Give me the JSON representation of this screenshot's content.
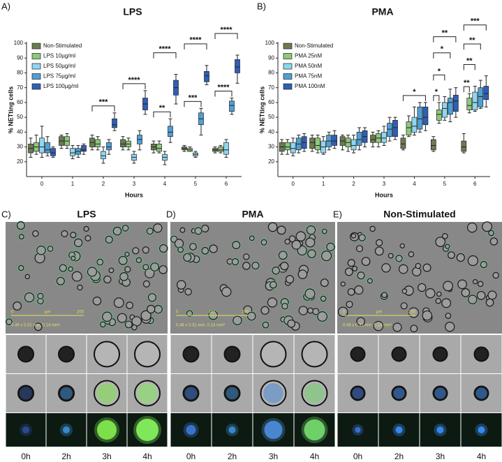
{
  "chart_data": [
    {
      "type": "box",
      "panel": "A)",
      "title": "LPS",
      "x_label": "Hours",
      "y_label": "% NETting cells",
      "categories": [
        "0",
        "1",
        "2",
        "3",
        "4",
        "5",
        "6"
      ],
      "ylim": [
        10,
        100
      ],
      "yticks": [
        20,
        30,
        40,
        50,
        60,
        70,
        80,
        90,
        100
      ],
      "legend": "top-left",
      "series": [
        {
          "name": "Non-Stimulated",
          "color": "#6b7c4f",
          "min": [
            23,
            29,
            28,
            28,
            26,
            27,
            26
          ],
          "q1": [
            26,
            31,
            30,
            30,
            28,
            28,
            27
          ],
          "median": [
            29,
            34,
            33,
            32,
            30,
            29,
            28
          ],
          "q3": [
            32,
            37,
            36,
            35,
            32,
            30,
            29
          ],
          "max": [
            36,
            38,
            38,
            37,
            34,
            31,
            30
          ]
        },
        {
          "name": "LPS 10µg/ml",
          "color": "#8cc97a",
          "min": [
            25,
            29,
            28,
            28,
            26,
            27,
            26
          ],
          "q1": [
            27,
            31,
            30,
            30,
            27,
            27,
            27
          ],
          "median": [
            30,
            34,
            32,
            32,
            29,
            28,
            28
          ],
          "q3": [
            33,
            37,
            35,
            34,
            32,
            29,
            30
          ],
          "max": [
            38,
            39,
            37,
            36,
            34,
            30,
            31
          ]
        },
        {
          "name": "LPS 50µg/ml",
          "color": "#8fd6f0",
          "min": [
            23,
            22,
            19,
            19,
            18,
            23,
            23
          ],
          "q1": [
            26,
            24,
            22,
            21,
            21,
            24,
            25
          ],
          "median": [
            30,
            26,
            24,
            23,
            23,
            25,
            28
          ],
          "q3": [
            36,
            29,
            27,
            25,
            25,
            26,
            33
          ],
          "max": [
            44,
            31,
            30,
            27,
            27,
            27,
            35
          ]
        },
        {
          "name": "LPS 75µg/ml",
          "color": "#4fa0d6",
          "min": [
            24,
            23,
            25,
            28,
            33,
            38,
            52
          ],
          "q1": [
            26,
            25,
            28,
            32,
            37,
            45,
            54
          ],
          "median": [
            28,
            27,
            30,
            35,
            40,
            49,
            58
          ],
          "q3": [
            33,
            29,
            33,
            38,
            44,
            53,
            61
          ],
          "max": [
            37,
            31,
            35,
            41,
            49,
            56,
            63
          ]
        },
        {
          "name": "LPS 100µg/ml",
          "color": "#2f5fb7",
          "min": [
            23,
            25,
            41,
            52,
            59,
            72,
            73
          ],
          "q1": [
            24,
            27,
            43,
            55,
            65,
            74,
            80
          ],
          "median": [
            26,
            28,
            45,
            59,
            70,
            78,
            84
          ],
          "q3": [
            29,
            31,
            49,
            63,
            75,
            81,
            89
          ],
          "max": [
            30,
            32,
            53,
            68,
            79,
            85,
            92
          ]
        }
      ],
      "annotations": [
        {
          "x": "2",
          "target": "LPS 100µg/ml",
          "label": "***"
        },
        {
          "x": "3",
          "target": "LPS 100µg/ml",
          "label": "****"
        },
        {
          "x": "4",
          "target": "LPS 75µg/ml",
          "label": "**"
        },
        {
          "x": "4",
          "target": "LPS 100µg/ml",
          "label": "****"
        },
        {
          "x": "5",
          "target": "LPS 75µg/ml",
          "label": "***"
        },
        {
          "x": "5",
          "target": "LPS 100µg/ml",
          "label": "****"
        },
        {
          "x": "6",
          "target": "LPS 75µg/ml",
          "label": "****"
        },
        {
          "x": "6",
          "target": "LPS 100µg/ml",
          "label": "****"
        }
      ]
    },
    {
      "type": "box",
      "panel": "B)",
      "title": "PMA",
      "x_label": "Hours",
      "y_label": "% NETting cells",
      "categories": [
        "0",
        "1",
        "2",
        "3",
        "4",
        "5",
        "6"
      ],
      "ylim": [
        10,
        100
      ],
      "yticks": [
        20,
        30,
        40,
        50,
        60,
        70,
        80,
        90,
        100
      ],
      "legend": "top-left",
      "series": [
        {
          "name": "Non-Stimulated",
          "color": "#6b7c4f",
          "min": [
            25,
            27,
            28,
            30,
            28,
            27,
            26
          ],
          "q1": [
            27,
            29,
            31,
            33,
            29,
            28,
            27
          ],
          "median": [
            30,
            33,
            34,
            35,
            32,
            31,
            30
          ],
          "q3": [
            33,
            36,
            37,
            38,
            36,
            35,
            34
          ],
          "max": [
            35,
            38,
            38,
            40,
            38,
            37,
            39
          ]
        },
        {
          "name": "PMA 25nM",
          "color": "#8cc97a",
          "min": [
            25,
            26,
            27,
            30,
            37,
            46,
            53
          ],
          "q1": [
            28,
            28,
            30,
            33,
            38,
            48,
            55
          ],
          "median": [
            30,
            31,
            33,
            36,
            43,
            52,
            58
          ],
          "q3": [
            33,
            36,
            36,
            39,
            47,
            55,
            63
          ],
          "max": [
            35,
            38,
            38,
            41,
            51,
            60,
            66
          ]
        },
        {
          "name": "PMA 50nM",
          "color": "#8fd6f0",
          "min": [
            24,
            25,
            26,
            31,
            38,
            48,
            54
          ],
          "q1": [
            26,
            26,
            28,
            33,
            40,
            50,
            55
          ],
          "median": [
            29,
            30,
            31,
            36,
            44,
            56,
            60
          ],
          "q3": [
            33,
            34,
            35,
            40,
            50,
            60,
            67
          ],
          "max": [
            36,
            37,
            38,
            44,
            57,
            64,
            71
          ]
        },
        {
          "name": "PMA 75nM",
          "color": "#4fa0d6",
          "min": [
            26,
            28,
            28,
            34,
            40,
            47,
            56
          ],
          "q1": [
            28,
            30,
            31,
            37,
            42,
            52,
            57
          ],
          "median": [
            32,
            34,
            35,
            42,
            49,
            60,
            64
          ],
          "q3": [
            36,
            38,
            40,
            46,
            57,
            63,
            70
          ],
          "max": [
            38,
            40,
            43,
            50,
            60,
            69,
            75
          ]
        },
        {
          "name": "PMA 100nM",
          "color": "#2f5fb7",
          "min": [
            27,
            29,
            30,
            35,
            41,
            50,
            57
          ],
          "q1": [
            29,
            31,
            33,
            37,
            45,
            54,
            62
          ],
          "median": [
            33,
            34,
            37,
            43,
            50,
            61,
            66
          ],
          "q3": [
            37,
            38,
            41,
            48,
            57,
            65,
            71
          ],
          "max": [
            39,
            41,
            43,
            50,
            60,
            70,
            78
          ]
        }
      ],
      "annotations": [
        {
          "x": "4",
          "target": "PMA 100nM",
          "label": "*"
        },
        {
          "x": "5",
          "target": "PMA 25nM",
          "label": "*"
        },
        {
          "x": "5",
          "target": "PMA 50nM",
          "label": "*"
        },
        {
          "x": "5",
          "target": "PMA 75nM",
          "label": "*"
        },
        {
          "x": "5",
          "target": "PMA 100nM",
          "label": "**"
        },
        {
          "x": "6",
          "target": "PMA 25nM",
          "label": "**"
        },
        {
          "x": "6",
          "target": "PMA 50nM",
          "label": "**"
        },
        {
          "x": "6",
          "target": "PMA 75nM",
          "label": "**"
        },
        {
          "x": "6",
          "target": "PMA 100nM",
          "label": "***"
        }
      ]
    }
  ],
  "panels": [
    {
      "label": "C)",
      "title": "LPS",
      "scale_start": "0",
      "scale_unit": "µm",
      "scale_end": "200",
      "scale_dims": "0.46 x 0.31 mm, 0.14 mm²",
      "times": [
        "0h",
        "2h",
        "3h",
        "4h"
      ]
    },
    {
      "label": "D)",
      "title": "PMA",
      "scale_start": "0",
      "scale_unit": "µm",
      "scale_end": "200",
      "scale_dims": "0.46 x 0.31 mm, 0.14 mm²",
      "times": [
        "0h",
        "2h",
        "3h",
        "4h"
      ]
    },
    {
      "label": "E)",
      "title": "Non-Stimulated",
      "scale_start": "0",
      "scale_unit": "µm",
      "scale_end": "200",
      "scale_dims": "0.46 x 0.31 mm, 0.14 mm²",
      "times": [
        "0h",
        "2h",
        "3h",
        "4h"
      ]
    }
  ]
}
